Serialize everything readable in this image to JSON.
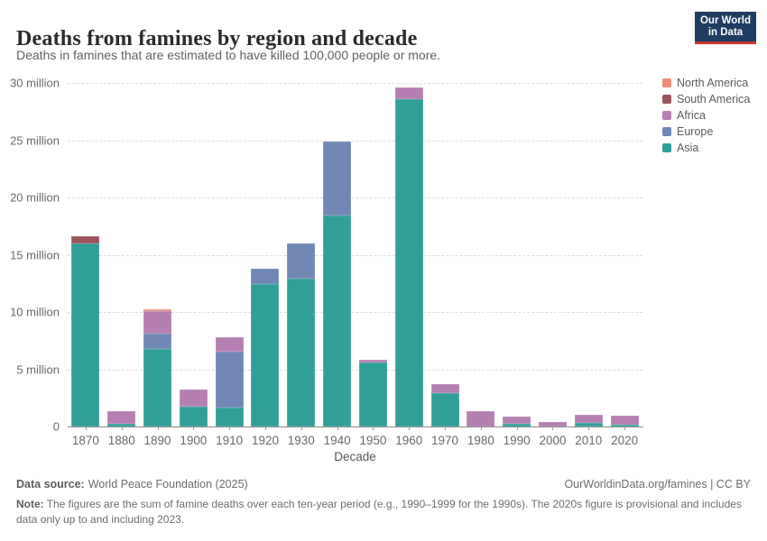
{
  "header": {
    "title": "Deaths from famines by region and decade",
    "subtitle": "Deaths in famines that are estimated to have killed 100,000 people or more.",
    "logo": {
      "line1": "Our World",
      "line2": "in Data"
    }
  },
  "chart_data": {
    "type": "bar",
    "stacked": true,
    "title": "Deaths from famines by region and decade",
    "xlabel": "Decade",
    "ylabel": "",
    "ylim": [
      0,
      30
    ],
    "grid": "dashed-horizontal",
    "legend_position": "right",
    "unit": "million deaths",
    "categories": [
      "1870",
      "1880",
      "1890",
      "1900",
      "1910",
      "1920",
      "1930",
      "1940",
      "1950",
      "1960",
      "1970",
      "1980",
      "1990",
      "2000",
      "2010",
      "2020"
    ],
    "series": [
      {
        "name": "Asia",
        "color": "#319e97",
        "values": [
          16.0,
          0.2,
          6.8,
          1.7,
          1.65,
          12.45,
          12.9,
          18.4,
          5.6,
          28.6,
          2.9,
          0,
          0.25,
          0,
          0.3,
          0.15
        ]
      },
      {
        "name": "Europe",
        "color": "#7187b6",
        "values": [
          0,
          0,
          1.35,
          0,
          4.9,
          1.3,
          3.1,
          6.45,
          0,
          0,
          0,
          0,
          0,
          0,
          0,
          0
        ]
      },
      {
        "name": "Africa",
        "color": "#b57fb2",
        "values": [
          0,
          1.15,
          1.9,
          1.5,
          1.25,
          0,
          0,
          0,
          0.2,
          1.0,
          0.8,
          1.35,
          0.65,
          0.4,
          0.7,
          0.8
        ]
      },
      {
        "name": "South America",
        "color": "#9c545c",
        "values": [
          0.6,
          0,
          0,
          0,
          0,
          0,
          0,
          0,
          0,
          0,
          0,
          0,
          0,
          0,
          0,
          0
        ]
      },
      {
        "name": "North America",
        "color": "#ea8e77",
        "values": [
          0,
          0,
          0.2,
          0,
          0,
          0,
          0,
          0,
          0,
          0,
          0,
          0,
          0,
          0,
          0,
          0
        ]
      }
    ],
    "totals": [
      16.6,
      1.35,
      10.25,
      3.2,
      7.8,
      13.75,
      16.0,
      24.85,
      5.8,
      29.6,
      3.7,
      1.35,
      0.9,
      0.4,
      1.0,
      0.95
    ],
    "yticks": [
      {
        "value": 0,
        "label": "0"
      },
      {
        "value": 5,
        "label": "5 million"
      },
      {
        "value": 10,
        "label": "10 million"
      },
      {
        "value": 15,
        "label": "15 million"
      },
      {
        "value": 20,
        "label": "20 million"
      },
      {
        "value": 25,
        "label": "25 million"
      },
      {
        "value": 30,
        "label": "30 million"
      }
    ],
    "legend": [
      {
        "label": "North America",
        "color": "#ea8e77"
      },
      {
        "label": "South America",
        "color": "#9c545c"
      },
      {
        "label": "Africa",
        "color": "#b57fb2"
      },
      {
        "label": "Europe",
        "color": "#7187b6"
      },
      {
        "label": "Asia",
        "color": "#319e97"
      }
    ]
  },
  "footer": {
    "source_label": "Data source:",
    "source_value": "World Peace Foundation (2025)",
    "link": "OurWorldinData.org/famines | CC BY",
    "note_label": "Note:",
    "note_text": "The figures are the sum of famine deaths over each ten-year period (e.g., 1990–1999 for the 1990s). The 2020s figure is provisional and includes data only up to and including 2023."
  }
}
